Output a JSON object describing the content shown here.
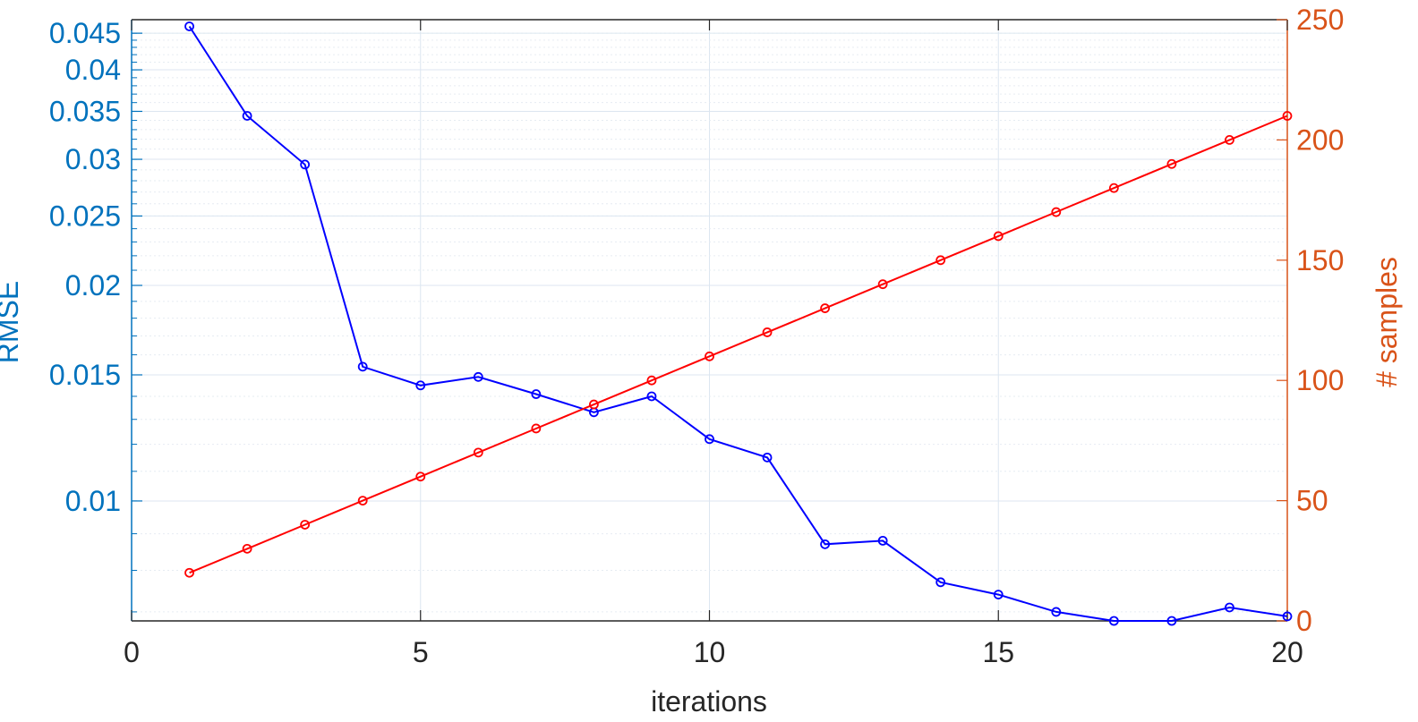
{
  "chart_data": {
    "type": "line",
    "title": "",
    "xlabel": "iterations",
    "ylabel_left": "RMSE",
    "ylabel_right": "# samples",
    "xlim": [
      0,
      20
    ],
    "xticks": [
      0,
      5,
      10,
      15,
      20
    ],
    "ylim_left": [
      0.0068,
      0.047
    ],
    "yscale_left": "log",
    "yticks_left": [
      0.01,
      0.015,
      0.02,
      0.025,
      0.03,
      0.035,
      0.04,
      0.045
    ],
    "ytick_labels_left": [
      "0.01",
      "0.015",
      "0.02",
      "0.025",
      "0.03",
      "0.035",
      "0.04",
      "0.045"
    ],
    "ylim_right": [
      0,
      250
    ],
    "yticks_right": [
      0,
      50,
      100,
      150,
      200,
      250
    ],
    "grid": true,
    "colors": {
      "left_axis": "#0072BD",
      "right_axis": "#D95319",
      "rmse_line": "#0000FF",
      "samples_line": "#FF0000",
      "x_axis": "#262626",
      "grid": "#DCE6F0"
    },
    "series": [
      {
        "axis": "left",
        "x": [
          1,
          2,
          3,
          4,
          5,
          6,
          7,
          8,
          9,
          10,
          11,
          12,
          13,
          14,
          15,
          16,
          17,
          18,
          19,
          20
        ],
        "values": [
          0.046,
          0.0345,
          0.0295,
          0.0154,
          0.0145,
          0.0149,
          0.0141,
          0.0133,
          0.014,
          0.0122,
          0.0115,
          0.0087,
          0.0088,
          0.0077,
          0.0074,
          0.007,
          0.0068,
          0.0068,
          0.0071,
          0.0069
        ]
      },
      {
        "axis": "right",
        "x": [
          1,
          2,
          3,
          4,
          5,
          6,
          7,
          8,
          9,
          10,
          11,
          12,
          13,
          14,
          15,
          16,
          17,
          18,
          19,
          20
        ],
        "values": [
          20,
          30,
          40,
          50,
          60,
          70,
          80,
          90,
          100,
          110,
          120,
          130,
          140,
          150,
          160,
          170,
          180,
          190,
          200,
          210
        ]
      }
    ]
  }
}
